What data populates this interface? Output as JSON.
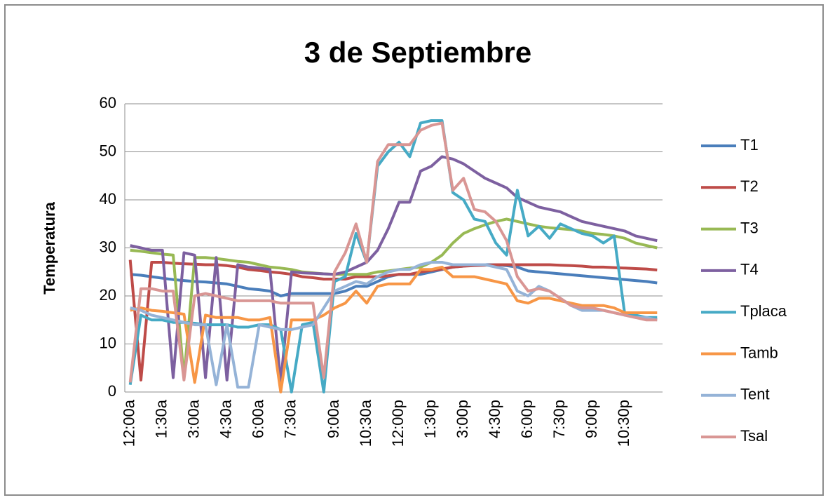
{
  "chart_data": {
    "type": "line",
    "title": "3 de Septiembre",
    "y_label": "Temperatura",
    "categories": [
      "12:00a",
      null,
      null,
      "1:30a",
      null,
      null,
      "3:00a",
      null,
      null,
      "4:30a",
      null,
      null,
      "6:00a",
      null,
      null,
      "7:30a",
      null,
      null,
      null,
      "9:00a",
      null,
      null,
      "10:30a",
      null,
      null,
      "12:00p",
      null,
      null,
      "1:30p",
      null,
      null,
      "3:00p",
      null,
      null,
      "4:30p",
      null,
      null,
      "6:00p",
      null,
      null,
      "7:30p",
      null,
      null,
      "9:00p",
      null,
      null,
      "10:30p",
      null,
      null,
      null
    ],
    "series": [
      {
        "name": "T1",
        "color": "#4a7ebb",
        "values": [
          24.5,
          24.3,
          24,
          23.7,
          23.4,
          23.2,
          23,
          22.9,
          22.7,
          22.5,
          22,
          21.5,
          21.3,
          21,
          20,
          20.5,
          20.5,
          20.5,
          20.5,
          20.5,
          21,
          22,
          22,
          23,
          24,
          24.5,
          24.5,
          24.5,
          25,
          25.5,
          26,
          26.2,
          26.5,
          26.5,
          26.5,
          26.3,
          26,
          25.2,
          25,
          24.8,
          24.6,
          24.4,
          24.2,
          24,
          23.8,
          23.6,
          23.4,
          23.2,
          23,
          22.7
        ]
      },
      {
        "name": "T2",
        "color": "#be4b48",
        "values": [
          27.5,
          2.5,
          27,
          27,
          26.8,
          26.7,
          26.6,
          26.5,
          26.5,
          26.3,
          26,
          25.5,
          25.3,
          25,
          24.8,
          24.5,
          24,
          23.8,
          23.5,
          23.5,
          23.5,
          24,
          24,
          24,
          24.2,
          24.5,
          24.5,
          25,
          25.3,
          25.6,
          26,
          26.2,
          26.3,
          26.4,
          26.5,
          26.5,
          26.5,
          26.5,
          26.5,
          26.5,
          26.4,
          26.3,
          26.2,
          26,
          26,
          25.9,
          25.8,
          25.7,
          25.6,
          25.4
        ]
      },
      {
        "name": "T3",
        "color": "#98b954",
        "values": [
          29.5,
          29.3,
          29,
          28.7,
          28.5,
          3,
          28,
          28,
          27.8,
          27.5,
          27.2,
          27,
          26.5,
          26,
          25.8,
          25.5,
          25,
          24.8,
          24.6,
          24.5,
          24.5,
          24.5,
          24.5,
          25,
          25.2,
          25.5,
          25.8,
          26,
          27,
          28.5,
          31,
          33,
          34,
          34.8,
          35.5,
          36,
          35.5,
          35,
          34.5,
          34.2,
          34,
          33.8,
          33.5,
          33,
          32.8,
          32.5,
          32,
          31,
          30.5,
          30
        ]
      },
      {
        "name": "T4",
        "color": "#7d60a0",
        "values": [
          30.5,
          30,
          29.5,
          29.5,
          3,
          29,
          28.5,
          3,
          28,
          2.5,
          26.5,
          26,
          25.8,
          25.5,
          2,
          25,
          24.8,
          24.7,
          24.6,
          24.5,
          25,
          26,
          27,
          29.5,
          34,
          39.5,
          39.5,
          46,
          47,
          49,
          48.5,
          47.5,
          46,
          44.5,
          43.5,
          42.5,
          40.5,
          39.5,
          38.5,
          38,
          37.5,
          36.5,
          35.5,
          35,
          34.5,
          34,
          33.5,
          32.5,
          32,
          31.5
        ]
      },
      {
        "name": "Tplaca",
        "color": "#46aac5",
        "values": [
          1.5,
          16,
          15,
          15,
          14.5,
          14.5,
          14.3,
          14,
          14,
          14,
          13.5,
          13.5,
          14,
          14,
          13,
          0,
          14,
          14.5,
          0,
          23,
          24,
          33,
          27,
          47,
          50,
          52,
          49,
          56,
          56.5,
          56.5,
          41.5,
          40,
          36,
          35.5,
          31,
          28.5,
          42,
          32.5,
          34.5,
          32,
          35,
          34,
          33,
          32.5,
          31,
          32.5,
          16,
          16,
          15.5,
          15.5
        ]
      },
      {
        "name": "Tamb",
        "color": "#f79646",
        "values": [
          17,
          17.5,
          17,
          16.8,
          16.5,
          16.2,
          2,
          16,
          15.5,
          15.5,
          15.5,
          15,
          15,
          15.5,
          0,
          15,
          15,
          15,
          16,
          17.5,
          18.5,
          21,
          18.5,
          22,
          22.5,
          22.5,
          22.5,
          25.5,
          25.5,
          26,
          24,
          24,
          24,
          23.5,
          23,
          22.5,
          19,
          18.5,
          19.5,
          19.5,
          19,
          18.5,
          18,
          18,
          18,
          17.5,
          16.5,
          16.5,
          16.5,
          16.5
        ]
      },
      {
        "name": "Tent",
        "color": "#95b3d7",
        "values": [
          17.5,
          17,
          16,
          15.5,
          15,
          14.5,
          14,
          14,
          1.5,
          14,
          1,
          1,
          14,
          13.5,
          13,
          13,
          13.5,
          14,
          17.5,
          21,
          22,
          23,
          22.5,
          24,
          25,
          25.5,
          25.5,
          26.5,
          27,
          27,
          26.5,
          26.5,
          26.5,
          26.5,
          26,
          25.5,
          21,
          20,
          22,
          21,
          19.5,
          18,
          17,
          17,
          17,
          16.5,
          16,
          15.5,
          15.5,
          15
        ]
      },
      {
        "name": "Tsal",
        "color": "#d99694",
        "values": [
          2,
          21.5,
          21.5,
          21,
          21,
          2.5,
          20,
          20.5,
          20,
          19.5,
          19,
          19,
          19,
          19,
          18.5,
          18.5,
          18.5,
          18.5,
          3,
          25,
          29,
          35,
          27,
          48,
          51.5,
          51.5,
          51.5,
          54.5,
          55.5,
          56,
          42,
          44.5,
          38,
          37.5,
          35.5,
          31.5,
          24,
          21,
          21.5,
          21,
          19.5,
          18,
          17.5,
          17.5,
          17,
          16.5,
          16,
          15.5,
          15,
          15
        ]
      }
    ],
    "ylim": [
      0,
      60
    ],
    "yticks": [
      0,
      10,
      20,
      30,
      40,
      50,
      60
    ],
    "grid": true,
    "legend": "right"
  }
}
